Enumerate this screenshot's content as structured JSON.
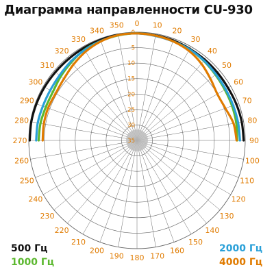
{
  "title": "Диаграмма направленности CU-930",
  "chart_data": {
    "type": "polar-line",
    "title": "Диаграмма направленности CU-930",
    "angle_ticks": [
      0,
      10,
      20,
      30,
      40,
      50,
      60,
      70,
      80,
      90,
      100,
      110,
      120,
      130,
      140,
      150,
      160,
      170,
      180,
      190,
      200,
      210,
      220,
      230,
      240,
      250,
      260,
      270,
      280,
      290,
      300,
      310,
      320,
      330,
      340,
      350
    ],
    "radial_ticks": [
      0,
      5,
      10,
      15,
      20,
      25,
      30,
      35
    ],
    "radial_unit": "dB",
    "angle_label_color": "#e07b00",
    "grid_color": "#666666",
    "grid": true,
    "series": [
      {
        "name": "500 Гц",
        "color": "#111111",
        "angles": [
          -90,
          -80,
          -70,
          -60,
          -50,
          -40,
          -30,
          -20,
          -10,
          0,
          10,
          20,
          30,
          40,
          50,
          60,
          70,
          80,
          90
        ],
        "values": [
          -0.3,
          -0.3,
          -0.4,
          -0.5,
          -0.6,
          -0.6,
          -0.5,
          -0.4,
          -0.3,
          -0.4,
          -0.5,
          -0.6,
          -0.8,
          -0.9,
          -1.0,
          -1.0,
          -0.8,
          -0.6,
          -0.5
        ]
      },
      {
        "name": "1000 Гц",
        "color": "#5cb82f",
        "angles": [
          -90,
          -80,
          -70,
          -60,
          -50,
          -40,
          -30,
          -20,
          -10,
          0,
          10,
          20,
          30,
          40,
          50,
          60,
          70,
          80,
          90
        ],
        "values": [
          -3.2,
          -3.3,
          -3.6,
          -3.6,
          -2.8,
          -2.0,
          -1.1,
          -0.8,
          -0.5,
          -0.4,
          -0.6,
          -0.9,
          -1.0,
          -1.4,
          -1.9,
          -2.2,
          -2.3,
          -2.4,
          -2.6
        ]
      },
      {
        "name": "2000 Гц",
        "color": "#2aa0d8",
        "angles": [
          -90,
          -80,
          -70,
          -60,
          -50,
          -40,
          -30,
          -20,
          -10,
          0,
          10,
          20,
          30,
          40,
          50,
          60,
          70,
          80,
          90
        ],
        "values": [
          -2.4,
          -2.4,
          -2.6,
          -2.6,
          -2.3,
          -1.7,
          -1.2,
          -0.8,
          -0.4,
          -0.4,
          -0.7,
          -0.9,
          -1.0,
          -1.3,
          -1.7,
          -1.9,
          -1.9,
          -1.8,
          -1.7
        ]
      },
      {
        "name": "4000 Гц",
        "color": "#e07b00",
        "angles": [
          -90,
          -80,
          -70,
          -60,
          -50,
          -40,
          -30,
          -20,
          -10,
          0,
          10,
          20,
          30,
          40,
          50,
          60,
          70,
          80,
          90
        ],
        "values": [
          -4.5,
          -4.4,
          -4.4,
          -4.6,
          -4.1,
          -3.0,
          -1.8,
          -0.9,
          -0.4,
          -0.4,
          -0.6,
          -0.9,
          -1.5,
          -2.6,
          -4.0,
          -5.0,
          -4.6,
          -3.3,
          -2.8
        ]
      }
    ],
    "legend": [
      {
        "label": "500 Гц",
        "color": "#111111",
        "position": "bottom-left"
      },
      {
        "label": "1000 Гц",
        "color": "#5cb82f",
        "position": "bottom-left"
      },
      {
        "label": "2000 Гц",
        "color": "#2aa0d8",
        "position": "bottom-right"
      },
      {
        "label": "4000 Гц",
        "color": "#e07b00",
        "position": "bottom-right"
      }
    ]
  }
}
